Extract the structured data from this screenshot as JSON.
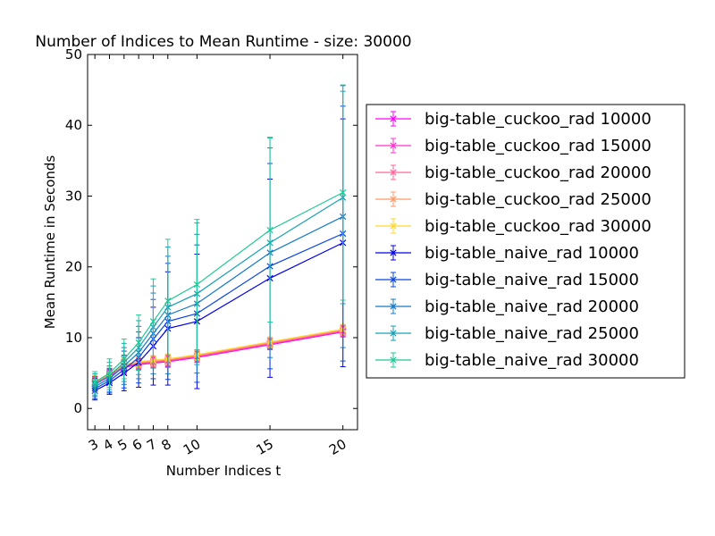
{
  "chart_data": {
    "type": "line",
    "title": "Number of Indices to Mean Runtime - size: 30000",
    "xlabel": "Number Indices t",
    "ylabel": "Mean Runtime in Seconds",
    "xlim": [
      2.5,
      21
    ],
    "ylim": [
      -3,
      50
    ],
    "xticks": [
      3,
      4,
      5,
      6,
      7,
      8,
      10,
      15,
      20
    ],
    "yticks": [
      0,
      10,
      20,
      30,
      40,
      50
    ],
    "grid": false,
    "legend_position": "outside-right",
    "x": [
      3,
      4,
      5,
      6,
      7,
      8,
      10,
      15,
      20
    ],
    "series": [
      {
        "name": "big-table_cuckoo_rad 10000",
        "color": "#ff00ff",
        "values": [
          3.4,
          4.5,
          5.8,
          6.2,
          6.4,
          6.6,
          7.2,
          9.0,
          10.8
        ],
        "err": [
          0.9,
          0.9,
          0.9,
          0.7,
          0.7,
          0.7,
          0.7,
          0.7,
          0.7
        ]
      },
      {
        "name": "big-table_cuckoo_rad 15000",
        "color": "#ff33cc",
        "values": [
          3.5,
          4.6,
          5.9,
          6.3,
          6.5,
          6.7,
          7.3,
          9.1,
          10.9
        ],
        "err": [
          0.9,
          0.9,
          0.9,
          0.7,
          0.7,
          0.7,
          0.7,
          0.7,
          0.7
        ]
      },
      {
        "name": "big-table_cuckoo_rad 20000",
        "color": "#ff6699",
        "values": [
          3.6,
          4.7,
          6.0,
          6.4,
          6.6,
          6.8,
          7.4,
          9.2,
          11.0
        ],
        "err": [
          0.9,
          0.9,
          0.9,
          0.7,
          0.7,
          0.7,
          0.7,
          0.7,
          0.7
        ]
      },
      {
        "name": "big-table_cuckoo_rad 25000",
        "color": "#ff9966",
        "values": [
          3.7,
          4.8,
          6.1,
          6.5,
          6.7,
          6.9,
          7.5,
          9.3,
          11.1
        ],
        "err": [
          0.9,
          0.9,
          0.9,
          0.7,
          0.7,
          0.7,
          0.7,
          0.7,
          0.7
        ]
      },
      {
        "name": "big-table_cuckoo_rad 30000",
        "color": "#ffd633",
        "values": [
          3.8,
          4.9,
          6.2,
          6.6,
          6.8,
          7.0,
          7.6,
          9.4,
          11.2
        ],
        "err": [
          0.9,
          0.9,
          0.9,
          0.7,
          0.7,
          0.7,
          0.7,
          0.7,
          0.7
        ]
      },
      {
        "name": "big-table_naive_rad 10000",
        "color": "#0000e6",
        "values": [
          2.5,
          3.6,
          5.0,
          6.5,
          8.8,
          11.3,
          12.3,
          18.4,
          23.4
        ],
        "err": [
          1.3,
          1.6,
          2.5,
          3.5,
          5.5,
          8.0,
          9.5,
          14.0,
          17.5
        ]
      },
      {
        "name": "big-table_naive_rad 15000",
        "color": "#0a45dc",
        "values": [
          2.8,
          3.9,
          5.5,
          7.2,
          9.8,
          12.3,
          13.4,
          20.1,
          24.7
        ],
        "err": [
          1.4,
          1.7,
          2.6,
          3.6,
          5.6,
          8.2,
          9.7,
          14.5,
          18.0
        ]
      },
      {
        "name": "big-table_naive_rad 20000",
        "color": "#1478c8",
        "values": [
          3.1,
          4.2,
          6.0,
          7.9,
          10.6,
          13.2,
          14.8,
          22.0,
          27.1
        ],
        "err": [
          1.4,
          1.8,
          2.6,
          3.7,
          5.7,
          8.3,
          9.8,
          14.8,
          18.5
        ]
      },
      {
        "name": "big-table_naive_rad 25000",
        "color": "#18a0b4",
        "values": [
          3.4,
          4.6,
          6.5,
          8.6,
          11.5,
          14.3,
          16.2,
          23.4,
          29.8
        ],
        "err": [
          1.5,
          1.9,
          2.7,
          3.8,
          5.8,
          8.5,
          10.0,
          14.9,
          15.0
        ]
      },
      {
        "name": "big-table_naive_rad 30000",
        "color": "#20c896",
        "values": [
          3.7,
          5.0,
          7.0,
          9.3,
          12.3,
          15.2,
          17.5,
          25.2,
          30.5
        ],
        "err": [
          1.5,
          2.0,
          2.8,
          3.9,
          6.0,
          8.7,
          9.2,
          13.0,
          15.2
        ]
      }
    ]
  }
}
